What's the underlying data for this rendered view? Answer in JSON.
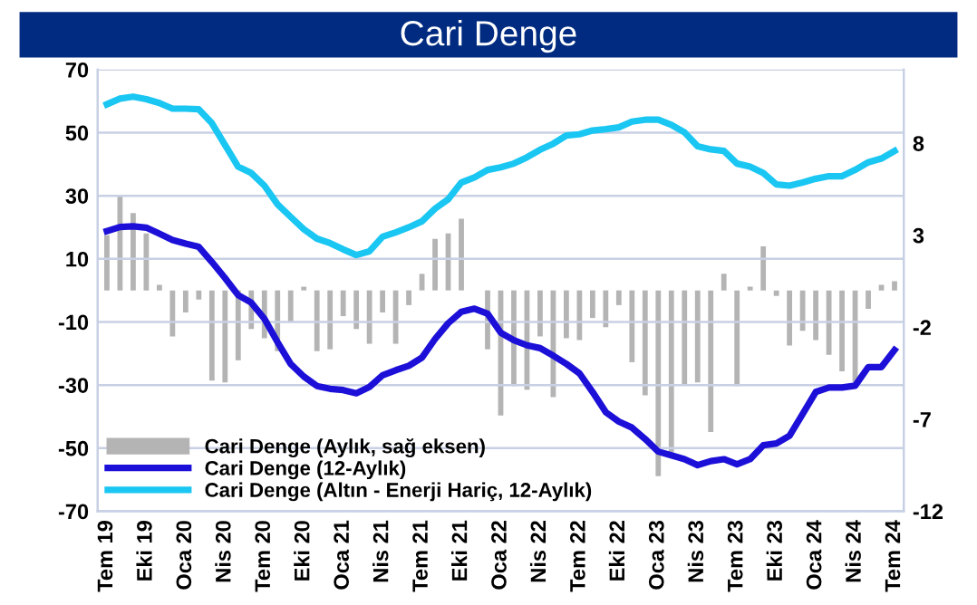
{
  "chart_data": {
    "type": "line",
    "title": "Cari Denge",
    "categories": [
      "Tem 19",
      null,
      null,
      "Eki 19",
      null,
      null,
      "Oca 20",
      null,
      null,
      "Nis 20",
      null,
      null,
      "Tem 20",
      null,
      null,
      "Eki 20",
      null,
      null,
      "Oca 21",
      null,
      null,
      "Nis 21",
      null,
      null,
      "Tem 21",
      null,
      null,
      "Eki 21",
      null,
      null,
      "Oca 22",
      null,
      null,
      "Nis 22",
      null,
      null,
      "Tem 22",
      null,
      null,
      "Eki 22",
      null,
      null,
      "Oca 23",
      null,
      null,
      "Nis 23",
      null,
      null,
      "Tem 23",
      null,
      null,
      "Eki 23",
      null,
      null,
      "Oca 24",
      null,
      null,
      "Nis 24",
      null,
      null,
      "Tem 24"
    ],
    "series": [
      {
        "name": "Cari Denge (Aylık, sağ eksen)",
        "type": "bar",
        "axis": "y2",
        "color": "#b4b4b4",
        "values": [
          3.0,
          5.1,
          4.2,
          3.1,
          0.3,
          -2.5,
          -1.2,
          -0.5,
          -4.9,
          -5.0,
          -3.8,
          -2.1,
          -2.6,
          -3.3,
          -1.7,
          0.2,
          -3.3,
          -3.2,
          -1.4,
          -2.1,
          -2.9,
          -1.2,
          -2.9,
          -0.8,
          0.9,
          2.8,
          3.1,
          3.9,
          null,
          -3.2,
          -6.8,
          -5.2,
          -5.4,
          -2.5,
          -5.8,
          -2.6,
          -2.7,
          -1.5,
          -2.0,
          -0.8,
          -3.9,
          -5.7,
          -10.1,
          -8.8,
          -5.1,
          -5.0,
          -7.7,
          0.9,
          -5.2,
          0.2,
          2.4,
          -0.3,
          -3.0,
          -2.2,
          -2.7,
          -3.5,
          -4.4,
          -5.0,
          -1.0,
          0.3,
          0.5
        ]
      },
      {
        "name": "Cari Denge (12-Aylık)",
        "color": "#1c10d8",
        "values": [
          18.8,
          20.1,
          20.3,
          19.9,
          18,
          16,
          14.8,
          13.8,
          9,
          3.9,
          -1.5,
          -3.9,
          -9,
          -16.4,
          -23.3,
          -27.3,
          -30.3,
          -31.2,
          -31.6,
          -32.6,
          -30.6,
          -26.9,
          -25.3,
          -23.9,
          -21.3,
          -15.4,
          -10.4,
          -6.8,
          -5.8,
          -7.4,
          -13.4,
          -15.8,
          -17.4,
          -18.3,
          -20.7,
          -23.3,
          -26.3,
          -32.2,
          -38.6,
          -41.6,
          -43.5,
          -47.1,
          -51.1,
          -52.3,
          -53.5,
          -55.4,
          -54.1,
          -53.5,
          -55.1,
          -53.5,
          -49.1,
          -48.5,
          -46.1,
          -39.2,
          -32.2,
          -30.8,
          -30.8,
          -30.2,
          -24.3,
          -24.3,
          -18.9
        ]
      },
      {
        "name": "Cari Denge (Altın - Enerji Hariç, 12-Aylık)",
        "color": "#1ac6f2",
        "values": [
          59,
          60.8,
          61.4,
          60.6,
          59.4,
          57.6,
          57.6,
          57.4,
          53,
          46.1,
          39.2,
          37.2,
          33.2,
          27.3,
          23.3,
          19.4,
          16.4,
          15,
          13,
          11.2,
          12.4,
          17,
          18.4,
          20,
          21.9,
          25.9,
          28.9,
          34.2,
          35.8,
          38.2,
          39,
          40.2,
          42.2,
          44.6,
          46.5,
          49.1,
          49.5,
          50.7,
          51.1,
          51.7,
          53.5,
          54.1,
          54.1,
          52.5,
          50.1,
          45.7,
          44.7,
          44.2,
          40.2,
          39.2,
          37.2,
          33.6,
          33.2,
          34.2,
          35.4,
          36.2,
          36.2,
          38.2,
          40.6,
          41.8,
          44.2
        ]
      }
    ],
    "ylim": [
      -70,
      70
    ],
    "yticks": [
      -70,
      -50,
      -30,
      -10,
      10,
      30,
      50,
      70
    ],
    "y2lim": [
      -12,
      12
    ],
    "y2ticks": [
      -12,
      -7,
      -2,
      3,
      8
    ],
    "grid": "y",
    "legend": "bottom left",
    "marker": "none",
    "line_style": "solid"
  }
}
